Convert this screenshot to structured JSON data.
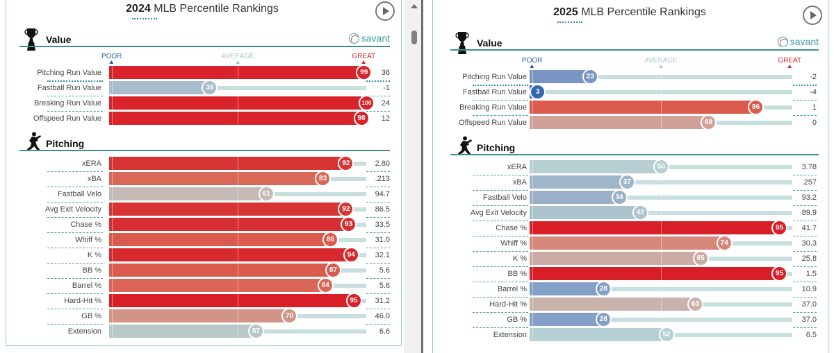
{
  "panels": [
    {
      "id": "left",
      "year": "2024",
      "title_rest": " MLB Percentile Rankings",
      "scale": {
        "poor": "POOR",
        "average": "AVERAGE",
        "great": "GREAT"
      },
      "savant_label": "savant",
      "sections": [
        {
          "title": "Value",
          "icon": "trophy-icon",
          "rows": [
            {
              "label": "Pitching Run Value",
              "percentile": 99,
              "value": "36",
              "color": "#d8232a"
            },
            {
              "label": "Fastball Run Value",
              "percentile": 39,
              "value": "-1",
              "color": "#a8bccb"
            },
            {
              "label": "Breaking Run Value",
              "percentile": 100,
              "value": "24",
              "color": "#d8232a"
            },
            {
              "label": "Offspeed Run Value",
              "percentile": 98,
              "value": "12",
              "color": "#d8232a"
            }
          ]
        },
        {
          "title": "Pitching",
          "icon": "pitcher-icon",
          "rows": [
            {
              "label": "xERA",
              "percentile": 92,
              "value": "2.80",
              "color": "#d73534"
            },
            {
              "label": "xBA",
              "percentile": 83,
              "value": ".213",
              "color": "#db6756"
            },
            {
              "label": "Fastball Velo",
              "percentile": 61,
              "value": "94.7",
              "color": "#c4bab6"
            },
            {
              "label": "Avg Exit Velocity",
              "percentile": 92,
              "value": "86.5",
              "color": "#d73534"
            },
            {
              "label": "Chase %",
              "percentile": 93,
              "value": "33.5",
              "color": "#d72f31"
            },
            {
              "label": "Whiff %",
              "percentile": 86,
              "value": "31.0",
              "color": "#da5b4e"
            },
            {
              "label": "K %",
              "percentile": 94,
              "value": "32.1",
              "color": "#d62a2e"
            },
            {
              "label": "BB %",
              "percentile": 87,
              "value": "5.6",
              "color": "#da5b4e"
            },
            {
              "label": "Barrel %",
              "percentile": 84,
              "value": "5.6",
              "color": "#db6556"
            },
            {
              "label": "Hard-Hit %",
              "percentile": 95,
              "value": "31.2",
              "color": "#d81f27"
            },
            {
              "label": "GB %",
              "percentile": 70,
              "value": "46.0",
              "color": "#d29488"
            },
            {
              "label": "Extension",
              "percentile": 57,
              "value": "6.6",
              "color": "#b8c8c9"
            }
          ]
        }
      ]
    },
    {
      "id": "right",
      "year": "2025",
      "title_rest": " MLB Percentile Rankings",
      "scale": {
        "poor": "POOR",
        "average": "AVERAGE",
        "great": "GREAT"
      },
      "savant_label": "savant",
      "sections": [
        {
          "title": "Value",
          "icon": "trophy-icon",
          "rows": [
            {
              "label": "Pitching Run Value",
              "percentile": 23,
              "value": "-2",
              "color": "#7a95c2"
            },
            {
              "label": "Fastball Run Value",
              "percentile": 3,
              "value": "-4",
              "color": "#3566b0"
            },
            {
              "label": "Breaking Run Value",
              "percentile": 86,
              "value": "1",
              "color": "#da5b4e"
            },
            {
              "label": "Offspeed Run Value",
              "percentile": 68,
              "value": "0",
              "color": "#d1a097"
            }
          ]
        },
        {
          "title": "Pitching",
          "icon": "pitcher-icon",
          "rows": [
            {
              "label": "xERA",
              "percentile": 50,
              "value": "3.78",
              "color": "#b5cfd2"
            },
            {
              "label": "xBA",
              "percentile": 37,
              "value": ".257",
              "color": "#9fb5c9"
            },
            {
              "label": "Fastball Velo",
              "percentile": 34,
              "value": "93.2",
              "color": "#9ab0c9"
            },
            {
              "label": "Avg Exit Velocity",
              "percentile": 42,
              "value": "89.9",
              "color": "#abc3cd"
            },
            {
              "label": "Chase %",
              "percentile": 95,
              "value": "41.7",
              "color": "#d81f27"
            },
            {
              "label": "Whiff %",
              "percentile": 74,
              "value": "30.3",
              "color": "#d6877a"
            },
            {
              "label": "K %",
              "percentile": 65,
              "value": "25.8",
              "color": "#ccaba4"
            },
            {
              "label": "BB %",
              "percentile": 95,
              "value": "1.5",
              "color": "#d81f27"
            },
            {
              "label": "Barrel %",
              "percentile": 28,
              "value": "10.9",
              "color": "#85a0c6"
            },
            {
              "label": "Hard-Hit %",
              "percentile": 63,
              "value": "37.0",
              "color": "#c8b2ab"
            },
            {
              "label": "GB %",
              "percentile": 28,
              "value": "37.0",
              "color": "#85a0c6"
            },
            {
              "label": "Extension",
              "percentile": 52,
              "value": "6.5",
              "color": "#b5cfd2"
            }
          ]
        }
      ]
    }
  ],
  "colors": {
    "poor": "#2a5aa8",
    "average": "#a9c8cc",
    "great": "#d8232a",
    "accent": "#3d8f8f"
  }
}
